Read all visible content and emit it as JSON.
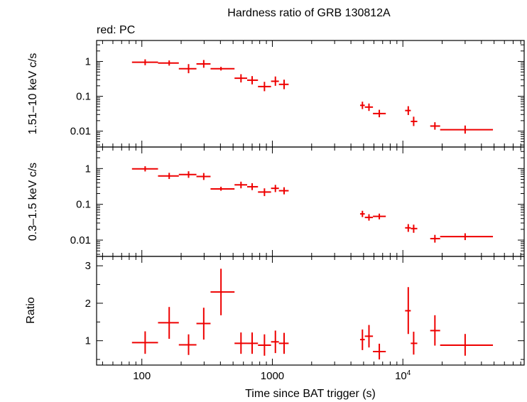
{
  "chart_data": {
    "type": "scatter",
    "title": "Hardness ratio of GRB 130812A",
    "legend": "red: PC",
    "xlabel": "Time since BAT trigger (s)",
    "xscale": "log",
    "xlim": [
      45,
      85000
    ],
    "x_ticks": [
      {
        "value": 100,
        "label": "100"
      },
      {
        "value": 1000,
        "label": "1000"
      },
      {
        "value": 10000,
        "label_base": "10",
        "label_exp": "4"
      }
    ],
    "series_color": "#ee0000",
    "panels": [
      {
        "ylabel": "1.51–10 keV c/s",
        "yscale": "log",
        "ylim": [
          0.0035,
          4.0
        ],
        "y_ticks": [
          {
            "value": 1,
            "label": "1"
          },
          {
            "value": 0.1,
            "label": "0.1"
          },
          {
            "value": 0.01,
            "label": "0.01"
          }
        ],
        "points": [
          {
            "x": 106,
            "xlo": 84,
            "xhi": 133,
            "y": 0.95,
            "ylo": 0.78,
            "yhi": 1.15
          },
          {
            "x": 162,
            "xlo": 133,
            "xhi": 192,
            "y": 0.9,
            "ylo": 0.76,
            "yhi": 1.07
          },
          {
            "x": 228,
            "xlo": 192,
            "xhi": 262,
            "y": 0.62,
            "ylo": 0.46,
            "yhi": 0.84
          },
          {
            "x": 298,
            "xlo": 262,
            "xhi": 336,
            "y": 0.85,
            "ylo": 0.66,
            "yhi": 1.1
          },
          {
            "x": 404,
            "xlo": 336,
            "xhi": 513,
            "y": 0.62,
            "ylo": 0.55,
            "yhi": 0.7
          },
          {
            "x": 575,
            "xlo": 513,
            "xhi": 641,
            "y": 0.33,
            "ylo": 0.25,
            "yhi": 0.43
          },
          {
            "x": 700,
            "xlo": 641,
            "xhi": 776,
            "y": 0.29,
            "ylo": 0.22,
            "yhi": 0.38
          },
          {
            "x": 870,
            "xlo": 776,
            "xhi": 977,
            "y": 0.19,
            "ylo": 0.14,
            "yhi": 0.26
          },
          {
            "x": 1055,
            "xlo": 977,
            "xhi": 1122,
            "y": 0.27,
            "ylo": 0.2,
            "yhi": 0.37
          },
          {
            "x": 1230,
            "xlo": 1122,
            "xhi": 1333,
            "y": 0.22,
            "ylo": 0.16,
            "yhi": 0.3
          },
          {
            "x": 4900,
            "xlo": 4700,
            "xhi": 5110,
            "y": 0.055,
            "ylo": 0.043,
            "yhi": 0.07
          },
          {
            "x": 5500,
            "xlo": 5110,
            "xhi": 5900,
            "y": 0.049,
            "ylo": 0.038,
            "yhi": 0.062
          },
          {
            "x": 6600,
            "xlo": 5900,
            "xhi": 7400,
            "y": 0.032,
            "ylo": 0.025,
            "yhi": 0.041
          },
          {
            "x": 11000,
            "xlo": 10400,
            "xhi": 11500,
            "y": 0.039,
            "ylo": 0.029,
            "yhi": 0.052
          },
          {
            "x": 12100,
            "xlo": 11500,
            "xhi": 12900,
            "y": 0.019,
            "ylo": 0.014,
            "yhi": 0.026
          },
          {
            "x": 17600,
            "xlo": 16200,
            "xhi": 19300,
            "y": 0.014,
            "ylo": 0.011,
            "yhi": 0.018
          },
          {
            "x": 30000,
            "xlo": 19300,
            "xhi": 49000,
            "y": 0.011,
            "ylo": 0.0085,
            "yhi": 0.0145
          }
        ]
      },
      {
        "ylabel": "0.3–1.5 keV c/s",
        "yscale": "log",
        "ylim": [
          0.0035,
          4.0
        ],
        "y_ticks": [
          {
            "value": 1,
            "label": "1"
          },
          {
            "value": 0.1,
            "label": "0.1"
          },
          {
            "value": 0.01,
            "label": "0.01"
          }
        ],
        "points": [
          {
            "x": 106,
            "xlo": 84,
            "xhi": 133,
            "y": 0.98,
            "ylo": 0.83,
            "yhi": 1.16
          },
          {
            "x": 162,
            "xlo": 133,
            "xhi": 192,
            "y": 0.62,
            "ylo": 0.51,
            "yhi": 0.76
          },
          {
            "x": 228,
            "xlo": 192,
            "xhi": 262,
            "y": 0.68,
            "ylo": 0.55,
            "yhi": 0.84
          },
          {
            "x": 298,
            "xlo": 262,
            "xhi": 336,
            "y": 0.6,
            "ylo": 0.48,
            "yhi": 0.75
          },
          {
            "x": 404,
            "xlo": 336,
            "xhi": 513,
            "y": 0.27,
            "ylo": 0.24,
            "yhi": 0.31
          },
          {
            "x": 575,
            "xlo": 513,
            "xhi": 641,
            "y": 0.35,
            "ylo": 0.28,
            "yhi": 0.43
          },
          {
            "x": 700,
            "xlo": 641,
            "xhi": 776,
            "y": 0.31,
            "ylo": 0.25,
            "yhi": 0.39
          },
          {
            "x": 870,
            "xlo": 776,
            "xhi": 977,
            "y": 0.22,
            "ylo": 0.17,
            "yhi": 0.28
          },
          {
            "x": 1055,
            "xlo": 977,
            "xhi": 1122,
            "y": 0.28,
            "ylo": 0.22,
            "yhi": 0.35
          },
          {
            "x": 1230,
            "xlo": 1122,
            "xhi": 1333,
            "y": 0.24,
            "ylo": 0.19,
            "yhi": 0.3
          },
          {
            "x": 4900,
            "xlo": 4700,
            "xhi": 5110,
            "y": 0.054,
            "ylo": 0.044,
            "yhi": 0.066
          },
          {
            "x": 5500,
            "xlo": 5110,
            "xhi": 5900,
            "y": 0.043,
            "ylo": 0.035,
            "yhi": 0.053
          },
          {
            "x": 6600,
            "xlo": 5900,
            "xhi": 7400,
            "y": 0.046,
            "ylo": 0.038,
            "yhi": 0.055
          },
          {
            "x": 11000,
            "xlo": 10400,
            "xhi": 11500,
            "y": 0.022,
            "ylo": 0.017,
            "yhi": 0.028
          },
          {
            "x": 12100,
            "xlo": 11500,
            "xhi": 12900,
            "y": 0.021,
            "ylo": 0.016,
            "yhi": 0.027
          },
          {
            "x": 17600,
            "xlo": 16200,
            "xhi": 19300,
            "y": 0.011,
            "ylo": 0.0085,
            "yhi": 0.014
          },
          {
            "x": 30000,
            "xlo": 19300,
            "xhi": 49000,
            "y": 0.0125,
            "ylo": 0.01,
            "yhi": 0.0155
          }
        ]
      },
      {
        "ylabel": "Ratio",
        "yscale": "linear",
        "ylim": [
          0.35,
          3.25
        ],
        "y_ticks": [
          {
            "value": 1,
            "label": "1"
          },
          {
            "value": 2,
            "label": "2"
          },
          {
            "value": 3,
            "label": "3"
          }
        ],
        "points": [
          {
            "x": 106,
            "xlo": 84,
            "xhi": 133,
            "y": 0.95,
            "ylo": 0.65,
            "yhi": 1.25
          },
          {
            "x": 162,
            "xlo": 133,
            "xhi": 192,
            "y": 1.48,
            "ylo": 1.05,
            "yhi": 1.9
          },
          {
            "x": 228,
            "xlo": 192,
            "xhi": 262,
            "y": 0.89,
            "ylo": 0.62,
            "yhi": 1.17
          },
          {
            "x": 298,
            "xlo": 262,
            "xhi": 336,
            "y": 1.46,
            "ylo": 1.03,
            "yhi": 1.88
          },
          {
            "x": 404,
            "xlo": 336,
            "xhi": 513,
            "y": 2.3,
            "ylo": 1.68,
            "yhi": 2.92
          },
          {
            "x": 575,
            "xlo": 513,
            "xhi": 641,
            "y": 0.93,
            "ylo": 0.65,
            "yhi": 1.22
          },
          {
            "x": 700,
            "xlo": 641,
            "xhi": 776,
            "y": 0.93,
            "ylo": 0.65,
            "yhi": 1.22
          },
          {
            "x": 870,
            "xlo": 776,
            "xhi": 977,
            "y": 0.88,
            "ylo": 0.6,
            "yhi": 1.17
          },
          {
            "x": 1055,
            "xlo": 977,
            "xhi": 1122,
            "y": 0.97,
            "ylo": 0.67,
            "yhi": 1.27
          },
          {
            "x": 1230,
            "xlo": 1122,
            "xhi": 1333,
            "y": 0.93,
            "ylo": 0.65,
            "yhi": 1.21
          },
          {
            "x": 4900,
            "xlo": 4700,
            "xhi": 5110,
            "y": 1.03,
            "ylo": 0.75,
            "yhi": 1.3
          },
          {
            "x": 5500,
            "xlo": 5110,
            "xhi": 5900,
            "y": 1.12,
            "ylo": 0.82,
            "yhi": 1.42
          },
          {
            "x": 6600,
            "xlo": 5900,
            "xhi": 7400,
            "y": 0.71,
            "ylo": 0.5,
            "yhi": 0.92
          },
          {
            "x": 11000,
            "xlo": 10400,
            "xhi": 11500,
            "y": 1.8,
            "ylo": 1.18,
            "yhi": 2.43
          },
          {
            "x": 12100,
            "xlo": 11500,
            "xhi": 12900,
            "y": 0.93,
            "ylo": 0.63,
            "yhi": 1.24
          },
          {
            "x": 17600,
            "xlo": 16200,
            "xhi": 19300,
            "y": 1.27,
            "ylo": 0.87,
            "yhi": 1.68
          },
          {
            "x": 30000,
            "xlo": 19300,
            "xhi": 49000,
            "y": 0.88,
            "ylo": 0.6,
            "yhi": 1.18
          }
        ]
      }
    ]
  }
}
